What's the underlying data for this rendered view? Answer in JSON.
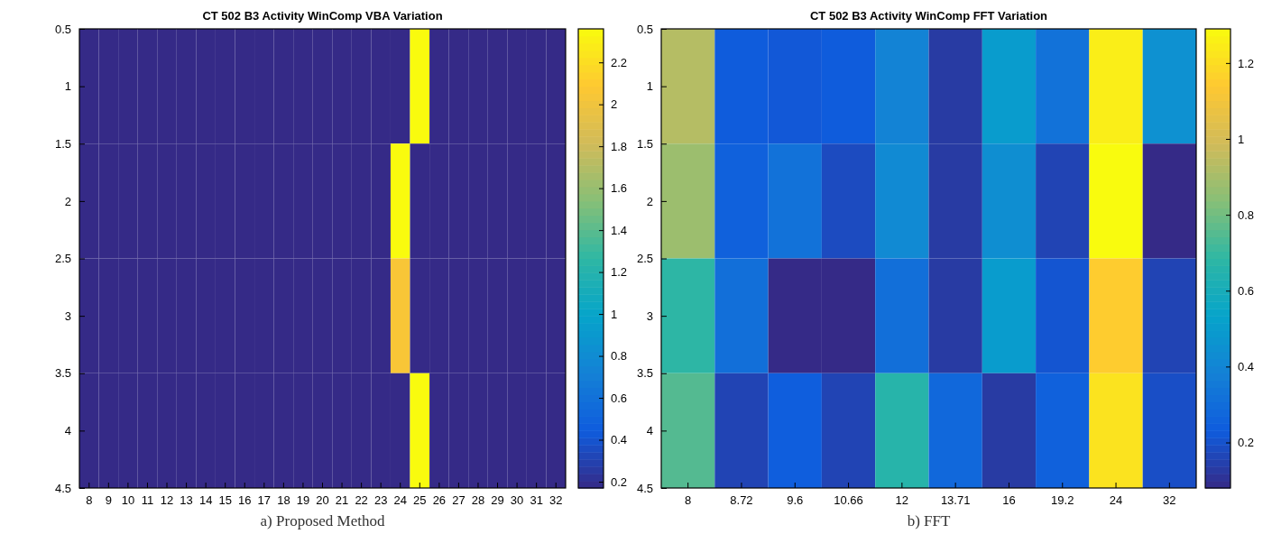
{
  "chart_data": [
    {
      "type": "heatmap",
      "title": "CT 502 B3 Activity WinComp VBA Variation",
      "xlabel": "a) Proposed Method",
      "categories": [
        "8",
        "9",
        "10",
        "11",
        "12",
        "13",
        "14",
        "15",
        "16",
        "17",
        "18",
        "19",
        "20",
        "21",
        "22",
        "23",
        "24",
        "25",
        "26",
        "27",
        "28",
        "29",
        "30",
        "31",
        "32"
      ],
      "ylim": [
        4.5,
        0.5
      ],
      "yticks": [
        0.5,
        1,
        1.5,
        2,
        2.5,
        3,
        3.5,
        4,
        4.5
      ],
      "cells": [
        [
          0.17,
          0.17,
          0.17,
          0.17,
          0.17,
          0.17,
          0.17,
          0.17,
          0.17,
          0.17,
          0.17,
          0.17,
          0.17,
          0.17,
          0.17,
          0.17,
          0.17,
          2.36,
          0.17,
          0.17,
          0.17,
          0.17,
          0.17,
          0.17,
          0.17
        ],
        [
          0.17,
          0.17,
          0.17,
          0.17,
          0.17,
          0.17,
          0.17,
          0.17,
          0.17,
          0.17,
          0.17,
          0.17,
          0.17,
          0.17,
          0.17,
          0.17,
          2.36,
          0.17,
          0.17,
          0.17,
          0.17,
          0.17,
          0.17,
          0.17,
          0.17
        ],
        [
          0.17,
          0.17,
          0.17,
          0.17,
          0.17,
          0.17,
          0.17,
          0.17,
          0.17,
          0.17,
          0.17,
          0.17,
          0.17,
          0.17,
          0.17,
          0.17,
          2.05,
          0.17,
          0.17,
          0.17,
          0.17,
          0.17,
          0.17,
          0.17,
          0.17
        ],
        [
          0.17,
          0.17,
          0.17,
          0.17,
          0.17,
          0.17,
          0.17,
          0.17,
          0.17,
          0.17,
          0.17,
          0.17,
          0.17,
          0.17,
          0.17,
          0.17,
          0.17,
          2.36,
          0.17,
          0.17,
          0.17,
          0.17,
          0.17,
          0.17,
          0.17
        ]
      ],
      "clim": [
        0.17,
        2.36
      ],
      "cticks": [
        0.2,
        0.4,
        0.6,
        0.8,
        1,
        1.2,
        1.4,
        1.6,
        1.8,
        2,
        2.2
      ]
    },
    {
      "type": "heatmap",
      "title": "CT 502 B3 Activity WinComp FFT Variation",
      "xlabel": "b) FFT",
      "categories": [
        "8",
        "8.72",
        "9.6",
        "10.66",
        "12",
        "13.71",
        "16",
        "19.2",
        "24",
        "32"
      ],
      "ylim": [
        4.5,
        0.5
      ],
      "yticks": [
        0.5,
        1,
        1.5,
        2,
        2.5,
        3,
        3.5,
        4,
        4.5
      ],
      "cells": [
        [
          0.93,
          0.23,
          0.22,
          0.23,
          0.39,
          0.13,
          0.5,
          0.32,
          1.25,
          0.45
        ],
        [
          0.88,
          0.25,
          0.32,
          0.18,
          0.42,
          0.13,
          0.44,
          0.16,
          1.29,
          0.08
        ],
        [
          0.68,
          0.31,
          0.08,
          0.08,
          0.31,
          0.13,
          0.5,
          0.21,
          1.15,
          0.16
        ],
        [
          0.75,
          0.16,
          0.24,
          0.16,
          0.66,
          0.28,
          0.13,
          0.25,
          1.22,
          0.19
        ]
      ],
      "clim": [
        0.08,
        1.29
      ],
      "cticks": [
        0.2,
        0.4,
        0.6,
        0.8,
        1,
        1.2
      ]
    }
  ]
}
